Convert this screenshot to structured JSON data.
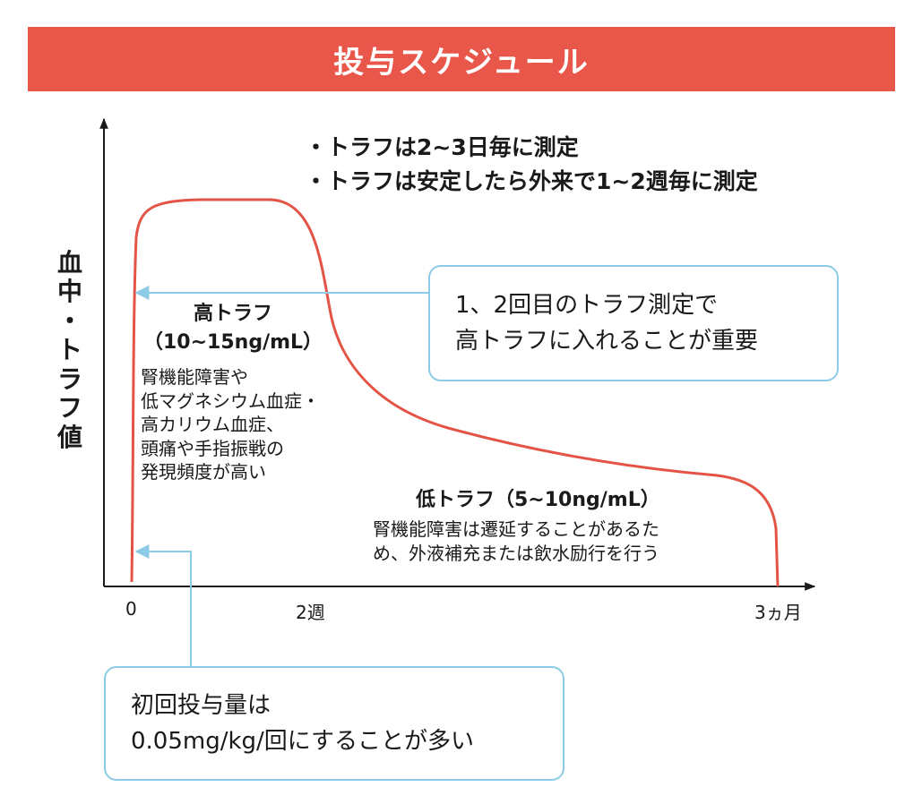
{
  "title": "投与スケジュール",
  "colors": {
    "banner": "#e9574a",
    "curve": "#e45446",
    "callout": "#8ccbe5",
    "axis": "#1a1a1a"
  },
  "notes": [
    "・トラフは2~3日毎に測定",
    "・トラフは安定したら外来で1~2週毎に測定"
  ],
  "y_axis_label": [
    "血",
    "中",
    "・",
    "ト",
    "ラ",
    "フ",
    "値"
  ],
  "x_ticks": [
    "0",
    "2週",
    "3ヵ月"
  ],
  "high_trough": {
    "title": [
      "高トラフ",
      "（10~15ng/mL）"
    ],
    "description": [
      "腎機能障害や",
      "低マグネシウム血症・",
      "高カリウム血症、",
      "頭痛や手指振戦の",
      "発現頻度が高い"
    ]
  },
  "low_trough": {
    "title": "低トラフ（5~10ng/mL）",
    "description": [
      "腎機能障害は遷延することがあるた",
      "め、外液補充または飲水励行を行う"
    ]
  },
  "callout_top": [
    "1、2回目のトラフ測定で",
    "高トラフに入れることが重要"
  ],
  "callout_bottom": [
    "初回投与量は",
    "0.05mg/kg/回にすることが多い"
  ]
}
